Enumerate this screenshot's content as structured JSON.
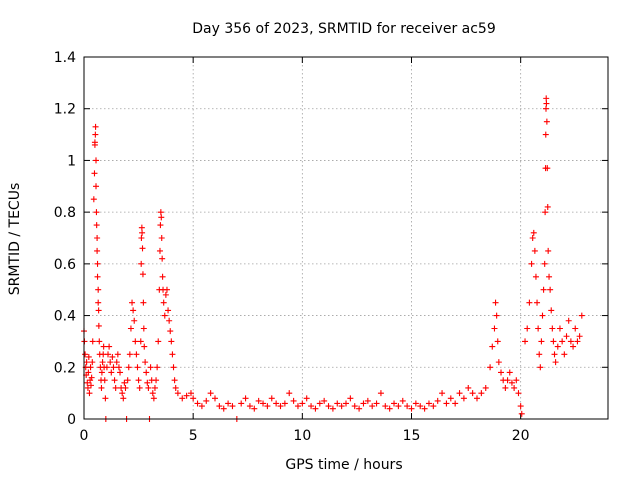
{
  "chart_data": {
    "type": "scatter",
    "title": "Day 356 of 2023, SRMTID for receiver ac59",
    "xlabel": "GPS time / hours",
    "ylabel": "SRMTID / TECUs",
    "xlim": [
      0,
      24
    ],
    "ylim": [
      0,
      1.4
    ],
    "xticks": [
      0,
      5,
      10,
      15,
      20
    ],
    "xtick_labels": [
      "0",
      "5",
      "10",
      "15",
      "20"
    ],
    "yticks": [
      0,
      0.2,
      0.4,
      0.6,
      0.8,
      1.0,
      1.2,
      1.4
    ],
    "ytick_labels": [
      "0",
      "0.2",
      "0.4",
      "0.6",
      "0.8",
      "1",
      "1.2",
      "1.4"
    ],
    "grid": true,
    "marker": "plus",
    "series": [
      {
        "name": "SRMTID",
        "color": "#ff0000",
        "points": [
          [
            0.0,
            0.34
          ],
          [
            0.02,
            0.3
          ],
          [
            0.05,
            0.25
          ],
          [
            0.08,
            0.2
          ],
          [
            0.1,
            0.17
          ],
          [
            0.12,
            0.22
          ],
          [
            0.15,
            0.14
          ],
          [
            0.18,
            0.12
          ],
          [
            0.2,
            0.18
          ],
          [
            0.22,
            0.24
          ],
          [
            0.25,
            0.1
          ],
          [
            0.28,
            0.15
          ],
          [
            0.3,
            0.2
          ],
          [
            0.32,
            0.13
          ],
          [
            0.35,
            0.16
          ],
          [
            0.38,
            0.22
          ],
          [
            0.4,
            0.3
          ],
          [
            0.45,
            0.85
          ],
          [
            0.48,
            0.95
          ],
          [
            0.5,
            1.07
          ],
          [
            0.5,
            1.06
          ],
          [
            0.52,
            1.1
          ],
          [
            0.53,
            1.13
          ],
          [
            0.55,
            1.0
          ],
          [
            0.55,
            0.9
          ],
          [
            0.57,
            0.8
          ],
          [
            0.58,
            0.75
          ],
          [
            0.6,
            0.7
          ],
          [
            0.6,
            0.65
          ],
          [
            0.62,
            0.6
          ],
          [
            0.62,
            0.55
          ],
          [
            0.65,
            0.5
          ],
          [
            0.65,
            0.45
          ],
          [
            0.67,
            0.42
          ],
          [
            0.68,
            0.36
          ],
          [
            0.7,
            0.3
          ],
          [
            0.72,
            0.25
          ],
          [
            0.75,
            0.2
          ],
          [
            0.78,
            0.15
          ],
          [
            0.8,
            0.12
          ],
          [
            0.82,
            0.18
          ],
          [
            0.85,
            0.22
          ],
          [
            0.88,
            0.25
          ],
          [
            0.9,
            0.28
          ],
          [
            0.92,
            0.2
          ],
          [
            0.95,
            0.15
          ],
          [
            0.98,
            0.08
          ],
          [
            1.0,
            0.0
          ],
          [
            1.05,
            0.2
          ],
          [
            1.1,
            0.25
          ],
          [
            1.15,
            0.28
          ],
          [
            1.2,
            0.22
          ],
          [
            1.25,
            0.18
          ],
          [
            1.3,
            0.24
          ],
          [
            1.35,
            0.2
          ],
          [
            1.4,
            0.15
          ],
          [
            1.45,
            0.12
          ],
          [
            1.5,
            0.22
          ],
          [
            1.55,
            0.25
          ],
          [
            1.6,
            0.2
          ],
          [
            1.65,
            0.18
          ],
          [
            1.7,
            0.12
          ],
          [
            1.75,
            0.1
          ],
          [
            1.8,
            0.08
          ],
          [
            1.85,
            0.14
          ],
          [
            1.9,
            0.12
          ],
          [
            1.95,
            0.0
          ],
          [
            2.0,
            0.15
          ],
          [
            2.05,
            0.2
          ],
          [
            2.1,
            0.25
          ],
          [
            2.15,
            0.35
          ],
          [
            2.2,
            0.45
          ],
          [
            2.25,
            0.42
          ],
          [
            2.3,
            0.38
          ],
          [
            2.35,
            0.3
          ],
          [
            2.4,
            0.25
          ],
          [
            2.45,
            0.2
          ],
          [
            2.5,
            0.15
          ],
          [
            2.55,
            0.12
          ],
          [
            2.6,
            0.3
          ],
          [
            2.62,
            0.6
          ],
          [
            2.63,
            0.7
          ],
          [
            2.65,
            0.74
          ],
          [
            2.66,
            0.72
          ],
          [
            2.68,
            0.66
          ],
          [
            2.7,
            0.56
          ],
          [
            2.72,
            0.45
          ],
          [
            2.74,
            0.35
          ],
          [
            2.76,
            0.28
          ],
          [
            2.8,
            0.22
          ],
          [
            2.85,
            0.18
          ],
          [
            2.9,
            0.14
          ],
          [
            2.95,
            0.12
          ],
          [
            3.0,
            0.0
          ],
          [
            3.05,
            0.2
          ],
          [
            3.1,
            0.15
          ],
          [
            3.15,
            0.1
          ],
          [
            3.2,
            0.08
          ],
          [
            3.25,
            0.12
          ],
          [
            3.3,
            0.15
          ],
          [
            3.35,
            0.2
          ],
          [
            3.4,
            0.3
          ],
          [
            3.45,
            0.5
          ],
          [
            3.48,
            0.65
          ],
          [
            3.5,
            0.75
          ],
          [
            3.52,
            0.8
          ],
          [
            3.54,
            0.78
          ],
          [
            3.56,
            0.7
          ],
          [
            3.58,
            0.62
          ],
          [
            3.6,
            0.55
          ],
          [
            3.62,
            0.5
          ],
          [
            3.65,
            0.45
          ],
          [
            3.7,
            0.4
          ],
          [
            3.75,
            0.48
          ],
          [
            3.8,
            0.5
          ],
          [
            3.85,
            0.42
          ],
          [
            3.9,
            0.38
          ],
          [
            3.95,
            0.34
          ],
          [
            4.0,
            0.3
          ],
          [
            4.05,
            0.25
          ],
          [
            4.1,
            0.2
          ],
          [
            4.15,
            0.15
          ],
          [
            4.2,
            0.12
          ],
          [
            4.3,
            0.1
          ],
          [
            4.5,
            0.08
          ],
          [
            4.7,
            0.09
          ],
          [
            4.9,
            0.1
          ],
          [
            5.0,
            0.08
          ],
          [
            5.2,
            0.06
          ],
          [
            5.4,
            0.05
          ],
          [
            5.6,
            0.07
          ],
          [
            5.8,
            0.1
          ],
          [
            6.0,
            0.08
          ],
          [
            6.2,
            0.05
          ],
          [
            6.4,
            0.04
          ],
          [
            6.6,
            0.06
          ],
          [
            6.8,
            0.05
          ],
          [
            7.0,
            0.0
          ],
          [
            7.2,
            0.06
          ],
          [
            7.4,
            0.08
          ],
          [
            7.6,
            0.05
          ],
          [
            7.8,
            0.04
          ],
          [
            8.0,
            0.07
          ],
          [
            8.2,
            0.06
          ],
          [
            8.4,
            0.05
          ],
          [
            8.6,
            0.08
          ],
          [
            8.8,
            0.06
          ],
          [
            9.0,
            0.05
          ],
          [
            9.2,
            0.06
          ],
          [
            9.4,
            0.1
          ],
          [
            9.6,
            0.07
          ],
          [
            9.8,
            0.05
          ],
          [
            10.0,
            0.06
          ],
          [
            10.2,
            0.08
          ],
          [
            10.4,
            0.05
          ],
          [
            10.6,
            0.04
          ],
          [
            10.8,
            0.06
          ],
          [
            11.0,
            0.07
          ],
          [
            11.2,
            0.05
          ],
          [
            11.4,
            0.04
          ],
          [
            11.6,
            0.06
          ],
          [
            11.8,
            0.05
          ],
          [
            12.0,
            0.06
          ],
          [
            12.2,
            0.08
          ],
          [
            12.4,
            0.05
          ],
          [
            12.6,
            0.04
          ],
          [
            12.8,
            0.06
          ],
          [
            13.0,
            0.07
          ],
          [
            13.2,
            0.05
          ],
          [
            13.4,
            0.06
          ],
          [
            13.6,
            0.1
          ],
          [
            13.8,
            0.05
          ],
          [
            14.0,
            0.04
          ],
          [
            14.2,
            0.06
          ],
          [
            14.4,
            0.05
          ],
          [
            14.6,
            0.07
          ],
          [
            14.8,
            0.05
          ],
          [
            15.0,
            0.04
          ],
          [
            15.2,
            0.06
          ],
          [
            15.4,
            0.05
          ],
          [
            15.6,
            0.04
          ],
          [
            15.8,
            0.06
          ],
          [
            16.0,
            0.05
          ],
          [
            16.2,
            0.07
          ],
          [
            16.4,
            0.1
          ],
          [
            16.6,
            0.06
          ],
          [
            16.8,
            0.08
          ],
          [
            17.0,
            0.06
          ],
          [
            17.2,
            0.1
          ],
          [
            17.4,
            0.08
          ],
          [
            17.6,
            0.12
          ],
          [
            17.8,
            0.1
          ],
          [
            18.0,
            0.08
          ],
          [
            18.2,
            0.1
          ],
          [
            18.4,
            0.12
          ],
          [
            18.6,
            0.2
          ],
          [
            18.7,
            0.28
          ],
          [
            18.8,
            0.35
          ],
          [
            18.85,
            0.45
          ],
          [
            18.9,
            0.4
          ],
          [
            18.95,
            0.3
          ],
          [
            19.0,
            0.22
          ],
          [
            19.1,
            0.18
          ],
          [
            19.2,
            0.15
          ],
          [
            19.3,
            0.12
          ],
          [
            19.4,
            0.15
          ],
          [
            19.5,
            0.18
          ],
          [
            19.6,
            0.14
          ],
          [
            19.7,
            0.12
          ],
          [
            19.8,
            0.15
          ],
          [
            19.9,
            0.1
          ],
          [
            20.0,
            0.05
          ],
          [
            20.05,
            0.02
          ],
          [
            20.2,
            0.3
          ],
          [
            20.3,
            0.35
          ],
          [
            20.4,
            0.45
          ],
          [
            20.5,
            0.6
          ],
          [
            20.55,
            0.7
          ],
          [
            20.6,
            0.72
          ],
          [
            20.65,
            0.65
          ],
          [
            20.7,
            0.55
          ],
          [
            20.75,
            0.45
          ],
          [
            20.8,
            0.35
          ],
          [
            20.85,
            0.25
          ],
          [
            20.9,
            0.2
          ],
          [
            20.95,
            0.3
          ],
          [
            21.0,
            0.4
          ],
          [
            21.05,
            0.5
          ],
          [
            21.1,
            0.6
          ],
          [
            21.12,
            0.8
          ],
          [
            21.14,
            0.97
          ],
          [
            21.15,
            1.1
          ],
          [
            21.16,
            1.2
          ],
          [
            21.17,
            1.24
          ],
          [
            21.18,
            1.22
          ],
          [
            21.2,
            1.15
          ],
          [
            21.22,
            0.97
          ],
          [
            21.24,
            0.82
          ],
          [
            21.26,
            0.65
          ],
          [
            21.3,
            0.55
          ],
          [
            21.35,
            0.5
          ],
          [
            21.4,
            0.42
          ],
          [
            21.45,
            0.35
          ],
          [
            21.5,
            0.3
          ],
          [
            21.55,
            0.25
          ],
          [
            21.6,
            0.22
          ],
          [
            21.7,
            0.28
          ],
          [
            21.8,
            0.35
          ],
          [
            21.9,
            0.3
          ],
          [
            22.0,
            0.25
          ],
          [
            22.1,
            0.32
          ],
          [
            22.2,
            0.38
          ],
          [
            22.3,
            0.3
          ],
          [
            22.4,
            0.28
          ],
          [
            22.5,
            0.35
          ],
          [
            22.6,
            0.3
          ],
          [
            22.7,
            0.32
          ],
          [
            22.8,
            0.4
          ]
        ]
      }
    ]
  }
}
